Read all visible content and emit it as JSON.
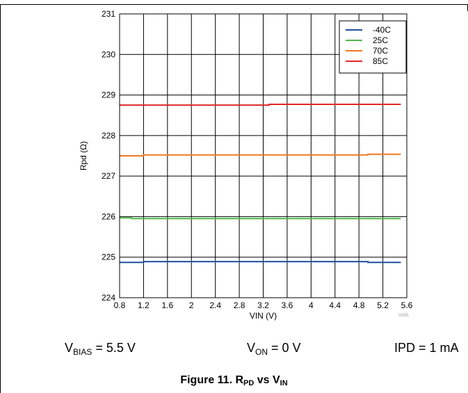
{
  "chart_data": {
    "type": "line",
    "title": "",
    "xlabel": "VIN (V)",
    "ylabel": "Rpd (Ω)",
    "xlim": [
      0.8,
      5.6
    ],
    "ylim": [
      224,
      231
    ],
    "xticks": [
      0.8,
      1.2,
      1.6,
      2,
      2.4,
      2.8,
      3.2,
      3.6,
      4,
      4.4,
      4.8,
      5.2,
      5.6
    ],
    "xtick_labels": [
      "0.8",
      "1.2",
      "1.6",
      "2",
      "2.4",
      "2.8",
      "3.2",
      "3.6",
      "4",
      "4.4",
      "4.8",
      "5.2",
      "5.6"
    ],
    "yticks": [
      224,
      225,
      226,
      227,
      228,
      229,
      230,
      231
    ],
    "ytick_labels": [
      "224",
      "225",
      "226",
      "227",
      "228",
      "229",
      "230",
      "231"
    ],
    "grid": true,
    "legend_position": "top-right",
    "watermark": "G005",
    "series": [
      {
        "name": "-40C",
        "color": "#1f4e9e",
        "x": [
          0.8,
          1.2,
          1.2,
          4.95,
          4.95,
          5.5
        ],
        "y": [
          224.87,
          224.87,
          224.89,
          224.89,
          224.87,
          224.87
        ]
      },
      {
        "name": "25C",
        "color": "#4cb848",
        "x": [
          0.8,
          1.0,
          1.0,
          5.5
        ],
        "y": [
          225.97,
          225.97,
          225.95,
          225.95
        ]
      },
      {
        "name": "70C",
        "color": "#ef7a22",
        "x": [
          0.8,
          1.2,
          1.2,
          4.95,
          4.95,
          5.5
        ],
        "y": [
          227.5,
          227.5,
          227.52,
          227.52,
          227.54,
          227.54
        ]
      },
      {
        "name": "85C",
        "color": "#e12826",
        "x": [
          0.8,
          3.3,
          3.3,
          5.5
        ],
        "y": [
          228.75,
          228.75,
          228.77,
          228.77
        ]
      }
    ]
  },
  "conditions": {
    "vbias": {
      "main": "V",
      "sub": "BIAS",
      "rest": " = 5.5 V"
    },
    "von": {
      "main": "V",
      "sub": "ON",
      "rest": " = 0 V"
    },
    "ipd": {
      "text": "IPD = 1 mA"
    }
  },
  "caption": {
    "prefix": "Figure 11. R",
    "sub1": "PD",
    "mid": " vs V",
    "sub2": "IN"
  }
}
